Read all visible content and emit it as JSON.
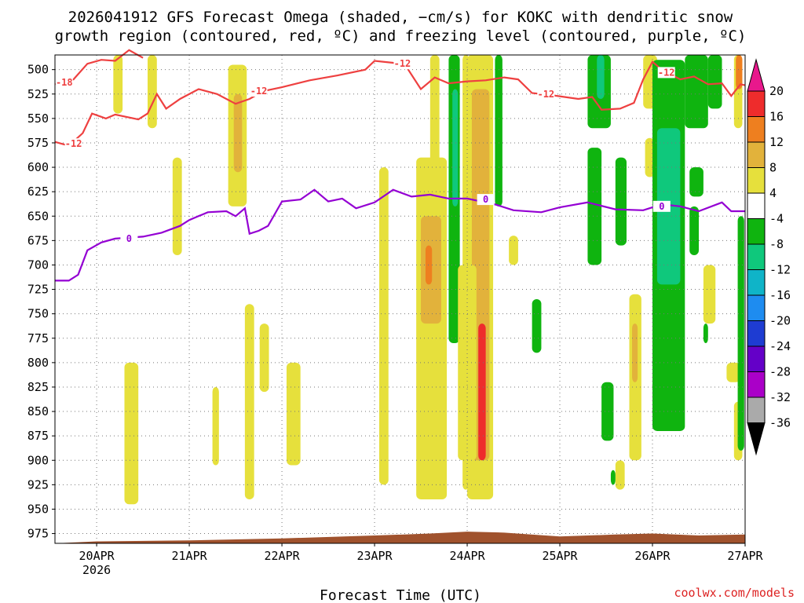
{
  "chart_data": {
    "type": "heatmap",
    "title_line1": "2026041912 GFS Forecast Omega (shaded, −cm/s) for KOKC with dendritic snow",
    "title_line2": "growth region (contoured, red, ºC) and freezing level (contoured, purple, ºC)",
    "xlabel": "Forecast Time (UTC)",
    "credit": "coolwx.com/models",
    "x_ticks": [
      "20APR",
      "21APR",
      "22APR",
      "23APR",
      "24APR",
      "25APR",
      "26APR",
      "27APR"
    ],
    "x_year_label": "2026",
    "x_range_days": [
      19.55,
      27.0
    ],
    "y_ticks": [
      500,
      525,
      550,
      575,
      600,
      625,
      650,
      675,
      700,
      725,
      750,
      775,
      800,
      825,
      850,
      875,
      900,
      925,
      950,
      975
    ],
    "y_range": [
      485,
      985
    ],
    "colorbar": {
      "levels": [
        20,
        16,
        12,
        8,
        4,
        -4,
        -8,
        -12,
        -16,
        -20,
        -24,
        -28,
        -32,
        -36
      ],
      "colors": [
        "#e8188c",
        "#ee2c2c",
        "#ee7f1f",
        "#e2b23b",
        "#e6e03c",
        "#ffffff",
        "#0fb40f",
        "#0fc87c",
        "#0fb4c8",
        "#1e8cf0",
        "#1e3cd2",
        "#6400c8",
        "#aa00c8",
        "#aaaaaa",
        "#000000"
      ]
    },
    "freezing_level_label": "0",
    "freezing_level_color": "#9400d3",
    "freezing_level_hpa": [
      [
        19.55,
        716
      ],
      [
        19.7,
        716
      ],
      [
        19.8,
        710
      ],
      [
        19.9,
        685
      ],
      [
        20.05,
        677
      ],
      [
        20.2,
        673
      ],
      [
        20.5,
        671
      ],
      [
        20.7,
        667
      ],
      [
        20.9,
        660
      ],
      [
        21.0,
        654
      ],
      [
        21.2,
        646
      ],
      [
        21.4,
        645
      ],
      [
        21.5,
        650
      ],
      [
        21.6,
        642
      ],
      [
        21.65,
        668
      ],
      [
        21.75,
        665
      ],
      [
        21.85,
        660
      ],
      [
        22.0,
        635
      ],
      [
        22.2,
        633
      ],
      [
        22.35,
        623
      ],
      [
        22.5,
        635
      ],
      [
        22.65,
        632
      ],
      [
        22.8,
        642
      ],
      [
        23.0,
        636
      ],
      [
        23.2,
        623
      ],
      [
        23.4,
        630
      ],
      [
        23.6,
        628
      ],
      [
        23.8,
        632
      ],
      [
        24.0,
        632
      ],
      [
        24.3,
        638
      ],
      [
        24.5,
        644
      ],
      [
        24.8,
        646
      ],
      [
        25.0,
        641
      ],
      [
        25.3,
        636
      ],
      [
        25.6,
        643
      ],
      [
        25.9,
        644
      ],
      [
        26.1,
        638
      ],
      [
        26.3,
        640
      ],
      [
        26.5,
        645
      ],
      [
        26.75,
        636
      ],
      [
        26.85,
        645
      ],
      [
        27.0,
        645
      ]
    ],
    "dgz_warm_color": "#ee4040",
    "dgz_warm_label": "-12",
    "dgz_warm_hpa": [
      [
        19.55,
        574
      ],
      [
        19.7,
        578
      ],
      [
        19.85,
        565
      ],
      [
        19.95,
        545
      ],
      [
        20.1,
        550
      ],
      [
        20.2,
        546
      ],
      [
        20.45,
        551
      ],
      [
        20.55,
        545
      ],
      [
        20.65,
        525
      ],
      [
        20.75,
        540
      ],
      [
        20.9,
        530
      ],
      [
        21.1,
        520
      ],
      [
        21.3,
        525
      ],
      [
        21.5,
        535
      ],
      [
        21.65,
        530
      ],
      [
        21.8,
        522
      ],
      [
        22.0,
        518
      ],
      [
        22.3,
        511
      ],
      [
        22.6,
        506
      ],
      [
        22.9,
        500
      ],
      [
        23.0,
        491
      ],
      [
        23.2,
        493
      ],
      [
        23.35,
        498
      ],
      [
        23.5,
        520
      ],
      [
        23.65,
        508
      ],
      [
        23.8,
        514
      ],
      [
        24.0,
        512
      ],
      [
        24.2,
        511
      ],
      [
        24.4,
        508
      ],
      [
        24.55,
        510
      ],
      [
        24.7,
        524
      ],
      [
        24.9,
        526
      ],
      [
        25.2,
        530
      ],
      [
        25.35,
        528
      ],
      [
        25.45,
        541
      ],
      [
        25.65,
        540
      ],
      [
        25.8,
        534
      ],
      [
        25.9,
        510
      ],
      [
        26.0,
        492
      ],
      [
        26.1,
        500
      ],
      [
        26.3,
        510
      ],
      [
        26.45,
        507
      ],
      [
        26.6,
        515
      ],
      [
        26.75,
        514
      ],
      [
        26.85,
        527
      ],
      [
        26.95,
        515
      ],
      [
        27.0,
        516
      ]
    ],
    "dgz_cold_label": "-18",
    "dgz_cold_hpa": [
      [
        19.55,
        515
      ],
      [
        19.75,
        510
      ],
      [
        19.9,
        494
      ],
      [
        20.05,
        490
      ],
      [
        20.2,
        491
      ],
      [
        20.35,
        480
      ],
      [
        20.5,
        488
      ]
    ],
    "terrain_color": "#a0522d",
    "omega_cells": [
      {
        "d0": 20.3,
        "d1": 20.45,
        "p0": 800,
        "p1": 945,
        "v": 4
      },
      {
        "d0": 20.18,
        "d1": 20.28,
        "p0": 485,
        "p1": 545,
        "v": 4
      },
      {
        "d0": 20.55,
        "d1": 20.65,
        "p0": 485,
        "p1": 560,
        "v": 4
      },
      {
        "d0": 20.82,
        "d1": 20.92,
        "p0": 590,
        "p1": 690,
        "v": 4
      },
      {
        "d0": 21.42,
        "d1": 21.62,
        "p0": 495,
        "p1": 640,
        "v": 4
      },
      {
        "d0": 21.48,
        "d1": 21.57,
        "p0": 525,
        "p1": 605,
        "v": 8
      },
      {
        "d0": 21.6,
        "d1": 21.7,
        "p0": 740,
        "p1": 940,
        "v": 4
      },
      {
        "d0": 21.76,
        "d1": 21.86,
        "p0": 760,
        "p1": 830,
        "v": 4
      },
      {
        "d0": 21.25,
        "d1": 21.32,
        "p0": 825,
        "p1": 905,
        "v": 4
      },
      {
        "d0": 22.05,
        "d1": 22.2,
        "p0": 800,
        "p1": 905,
        "v": 4
      },
      {
        "d0": 23.05,
        "d1": 23.15,
        "p0": 600,
        "p1": 925,
        "v": 4
      },
      {
        "d0": 23.45,
        "d1": 23.78,
        "p0": 590,
        "p1": 940,
        "v": 4
      },
      {
        "d0": 23.5,
        "d1": 23.72,
        "p0": 650,
        "p1": 760,
        "v": 8
      },
      {
        "d0": 23.55,
        "d1": 23.62,
        "p0": 680,
        "p1": 720,
        "v": 12
      },
      {
        "d0": 23.8,
        "d1": 23.92,
        "p0": 485,
        "p1": 780,
        "v": -8
      },
      {
        "d0": 23.84,
        "d1": 23.9,
        "p0": 520,
        "p1": 640,
        "v": -12
      },
      {
        "d0": 23.6,
        "d1": 23.7,
        "p0": 485,
        "p1": 600,
        "v": 4
      },
      {
        "d0": 23.95,
        "d1": 24.02,
        "p0": 485,
        "p1": 930,
        "v": 4
      },
      {
        "d0": 24.0,
        "d1": 24.28,
        "p0": 485,
        "p1": 940,
        "v": 4
      },
      {
        "d0": 24.05,
        "d1": 24.24,
        "p0": 520,
        "p1": 900,
        "v": 8
      },
      {
        "d0": 24.12,
        "d1": 24.2,
        "p0": 760,
        "p1": 900,
        "v": 16
      },
      {
        "d0": 24.3,
        "d1": 24.38,
        "p0": 485,
        "p1": 640,
        "v": -8
      },
      {
        "d0": 24.45,
        "d1": 24.55,
        "p0": 670,
        "p1": 700,
        "v": 4
      },
      {
        "d0": 24.7,
        "d1": 24.8,
        "p0": 735,
        "p1": 790,
        "v": -8
      },
      {
        "d0": 25.3,
        "d1": 25.55,
        "p0": 485,
        "p1": 560,
        "v": -8
      },
      {
        "d0": 25.4,
        "d1": 25.48,
        "p0": 485,
        "p1": 530,
        "v": -12
      },
      {
        "d0": 25.3,
        "d1": 25.45,
        "p0": 580,
        "p1": 700,
        "v": -8
      },
      {
        "d0": 25.45,
        "d1": 25.58,
        "p0": 820,
        "p1": 880,
        "v": -8
      },
      {
        "d0": 25.6,
        "d1": 25.72,
        "p0": 590,
        "p1": 680,
        "v": -8
      },
      {
        "d0": 25.75,
        "d1": 25.88,
        "p0": 730,
        "p1": 900,
        "v": 4
      },
      {
        "d0": 25.78,
        "d1": 25.84,
        "p0": 760,
        "p1": 820,
        "v": 8
      },
      {
        "d0": 25.9,
        "d1": 26.05,
        "p0": 485,
        "p1": 540,
        "v": 4
      },
      {
        "d0": 25.92,
        "d1": 26.02,
        "p0": 570,
        "p1": 610,
        "v": 4
      },
      {
        "d0": 26.0,
        "d1": 26.35,
        "p0": 490,
        "p1": 870,
        "v": -8
      },
      {
        "d0": 26.05,
        "d1": 26.3,
        "p0": 560,
        "p1": 720,
        "v": -12
      },
      {
        "d0": 26.35,
        "d1": 26.6,
        "p0": 485,
        "p1": 560,
        "v": -8
      },
      {
        "d0": 26.4,
        "d1": 26.55,
        "p0": 600,
        "p1": 630,
        "v": -8
      },
      {
        "d0": 26.55,
        "d1": 26.68,
        "p0": 700,
        "p1": 760,
        "v": 4
      },
      {
        "d0": 26.6,
        "d1": 26.75,
        "p0": 485,
        "p1": 540,
        "v": -8
      },
      {
        "d0": 26.8,
        "d1": 26.95,
        "p0": 800,
        "p1": 820,
        "v": 4
      },
      {
        "d0": 26.88,
        "d1": 26.97,
        "p0": 485,
        "p1": 560,
        "v": 4
      },
      {
        "d0": 26.9,
        "d1": 26.97,
        "p0": 485,
        "p1": 520,
        "v": 12
      },
      {
        "d0": 26.88,
        "d1": 26.97,
        "p0": 840,
        "p1": 900,
        "v": 4
      },
      {
        "d0": 26.92,
        "d1": 26.99,
        "p0": 650,
        "p1": 890,
        "v": -8
      },
      {
        "d0": 26.4,
        "d1": 26.5,
        "p0": 640,
        "p1": 690,
        "v": -8
      },
      {
        "d0": 26.55,
        "d1": 26.6,
        "p0": 760,
        "p1": 780,
        "v": -8
      },
      {
        "d0": 23.9,
        "d1": 24.1,
        "p0": 700,
        "p1": 900,
        "v": 4
      },
      {
        "d0": 25.6,
        "d1": 25.7,
        "p0": 900,
        "p1": 930,
        "v": 4
      },
      {
        "d0": 25.55,
        "d1": 25.6,
        "p0": 910,
        "p1": 925,
        "v": -8
      }
    ]
  }
}
